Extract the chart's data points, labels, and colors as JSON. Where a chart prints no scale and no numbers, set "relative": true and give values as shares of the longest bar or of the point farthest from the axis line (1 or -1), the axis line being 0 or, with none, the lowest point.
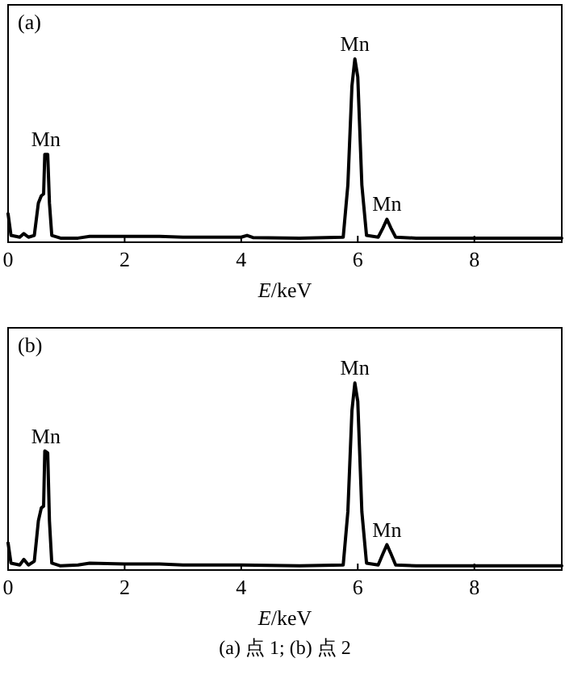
{
  "chart_data": [
    {
      "type": "line",
      "title": "(a)",
      "xlabel": "E/keV",
      "relative": true,
      "xlim": [
        0,
        9.5
      ],
      "xticks": [
        0,
        2,
        4,
        6,
        8
      ],
      "grid": false,
      "marker": "none",
      "line_style": "solid",
      "annotations": [
        {
          "text": "Mn",
          "x": 0.65,
          "y": 0.47
        },
        {
          "text": "Mn",
          "x": 5.95,
          "y": 1
        },
        {
          "text": "Mn",
          "x": 6.5,
          "y": 0.11
        }
      ],
      "series": [
        {
          "color": "#000000",
          "x": [
            0,
            0.05,
            0.2,
            0.27,
            0.35,
            0.45,
            0.52,
            0.57,
            0.61,
            0.63,
            0.68,
            0.71,
            0.75,
            0.9,
            1.2,
            1.4,
            2.0,
            2.6,
            3.0,
            4.0,
            4.1,
            4.2,
            5.0,
            5.75,
            5.83,
            5.9,
            5.95,
            6.0,
            6.07,
            6.15,
            6.35,
            6.43,
            6.5,
            6.57,
            6.65,
            7.0,
            9.5
          ],
          "values": [
            0.14,
            0.02,
            0.01,
            0.03,
            0.01,
            0.02,
            0.2,
            0.24,
            0.25,
            0.47,
            0.47,
            0.2,
            0.02,
            0.005,
            0.005,
            0.015,
            0.015,
            0.015,
            0.01,
            0.01,
            0.02,
            0.008,
            0.005,
            0.01,
            0.3,
            0.85,
            1,
            0.9,
            0.3,
            0.02,
            0.01,
            0.06,
            0.11,
            0.06,
            0.01,
            0.005,
            0.005
          ]
        }
      ]
    },
    {
      "type": "line",
      "title": "(b)",
      "xlabel": "E/keV",
      "relative": true,
      "xlim": [
        0,
        9.5
      ],
      "xticks": [
        0,
        2,
        4,
        6,
        8
      ],
      "grid": false,
      "marker": "none",
      "line_style": "solid",
      "annotations": [
        {
          "text": "Mn",
          "x": 0.65,
          "y": 0.63
        },
        {
          "text": "Mn",
          "x": 5.95,
          "y": 1
        },
        {
          "text": "Mn",
          "x": 6.5,
          "y": 0.12
        },
        "(a) 点 1; (b) 点 2"
      ],
      "series": [
        {
          "color": "#000000",
          "x": [
            0,
            0.05,
            0.2,
            0.27,
            0.35,
            0.45,
            0.52,
            0.57,
            0.61,
            0.63,
            0.68,
            0.71,
            0.75,
            0.9,
            1.2,
            1.4,
            2.0,
            2.6,
            3.0,
            4.0,
            4.5,
            5.0,
            5.75,
            5.83,
            5.9,
            5.95,
            6.0,
            6.07,
            6.15,
            6.35,
            6.43,
            6.5,
            6.57,
            6.65,
            7.0,
            8.0,
            9.5
          ],
          "values": [
            0.13,
            0.02,
            0.01,
            0.04,
            0.01,
            0.03,
            0.25,
            0.32,
            0.33,
            0.63,
            0.62,
            0.25,
            0.02,
            0.005,
            0.01,
            0.02,
            0.015,
            0.015,
            0.01,
            0.01,
            0.008,
            0.005,
            0.01,
            0.3,
            0.85,
            1,
            0.9,
            0.3,
            0.02,
            0.01,
            0.07,
            0.12,
            0.07,
            0.01,
            0.005,
            0.005,
            0.005
          ]
        }
      ]
    }
  ]
}
